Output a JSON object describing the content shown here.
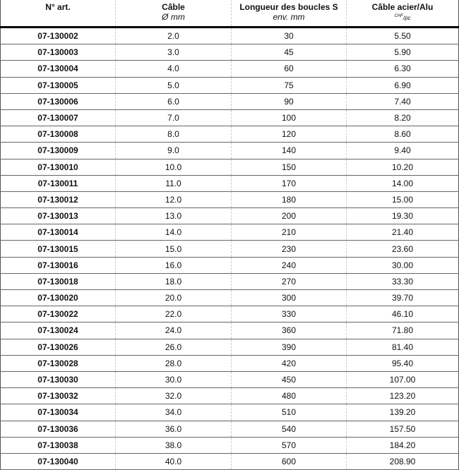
{
  "header": {
    "art": "N° art.",
    "cable": "Câble",
    "cable_unit": "Ø mm",
    "length": "Longueur des boucles S",
    "length_unit": "env. mm",
    "price": "Câble acier/Alu",
    "price_unit_top": "CHF",
    "price_unit_bottom": "pc"
  },
  "rows": [
    [
      "07-130002",
      "2.0",
      "30",
      "5.50"
    ],
    [
      "07-130003",
      "3.0",
      "45",
      "5.90"
    ],
    [
      "07-130004",
      "4.0",
      "60",
      "6.30"
    ],
    [
      "07-130005",
      "5.0",
      "75",
      "6.90"
    ],
    [
      "07-130006",
      "6.0",
      "90",
      "7.40"
    ],
    [
      "07-130007",
      "7.0",
      "100",
      "8.20"
    ],
    [
      "07-130008",
      "8.0",
      "120",
      "8.60"
    ],
    [
      "07-130009",
      "9.0",
      "140",
      "9.40"
    ],
    [
      "07-130010",
      "10.0",
      "150",
      "10.20"
    ],
    [
      "07-130011",
      "11.0",
      "170",
      "14.00"
    ],
    [
      "07-130012",
      "12.0",
      "180",
      "15.00"
    ],
    [
      "07-130013",
      "13.0",
      "200",
      "19.30"
    ],
    [
      "07-130014",
      "14.0",
      "210",
      "21.40"
    ],
    [
      "07-130015",
      "15.0",
      "230",
      "23.60"
    ],
    [
      "07-130016",
      "16.0",
      "240",
      "30.00"
    ],
    [
      "07-130018",
      "18.0",
      "270",
      "33.30"
    ],
    [
      "07-130020",
      "20.0",
      "300",
      "39.70"
    ],
    [
      "07-130022",
      "22.0",
      "330",
      "46.10"
    ],
    [
      "07-130024",
      "24.0",
      "360",
      "71.80"
    ],
    [
      "07-130026",
      "26.0",
      "390",
      "81.40"
    ],
    [
      "07-130028",
      "28.0",
      "420",
      "95.40"
    ],
    [
      "07-130030",
      "30.0",
      "450",
      "107.00"
    ],
    [
      "07-130032",
      "32.0",
      "480",
      "123.20"
    ],
    [
      "07-130034",
      "34.0",
      "510",
      "139.20"
    ],
    [
      "07-130036",
      "36.0",
      "540",
      "157.50"
    ],
    [
      "07-130038",
      "38.0",
      "570",
      "184.20"
    ],
    [
      "07-130040",
      "40.0",
      "600",
      "208.90"
    ]
  ]
}
